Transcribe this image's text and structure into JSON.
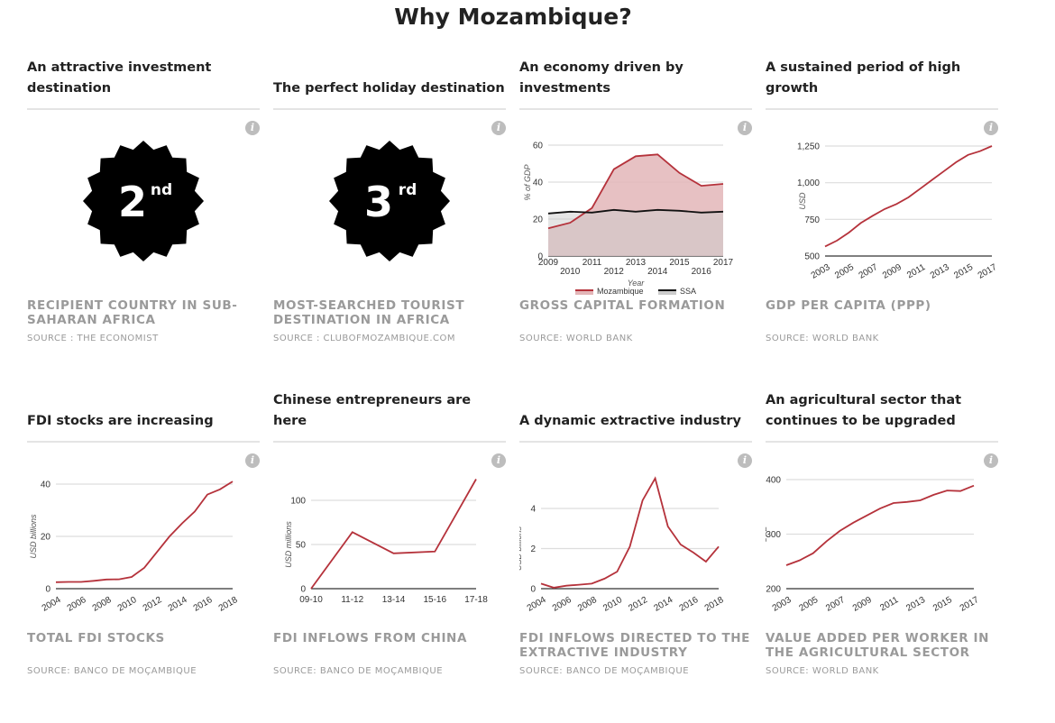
{
  "title": "Why Mozambique?",
  "info_label": "i",
  "cards": [
    {
      "title": "An attractive investment destination",
      "caption": "Recipient country in Sub-Saharan Africa",
      "source": "Source : The Economist",
      "badge": {
        "number": "2",
        "suffix": "nd"
      }
    },
    {
      "title": "The perfect holiday destination",
      "caption": "Most-searched tourist destination in Africa",
      "source": "Source : clubofmozambique.com",
      "badge": {
        "number": "3",
        "suffix": "rd"
      }
    },
    {
      "title": "An economy driven by investments",
      "caption": "Gross capital formation",
      "source": "Source: World Bank"
    },
    {
      "title": "A sustained period of high growth",
      "caption": "GDP per capita (PPP)",
      "source": "Source: World Bank"
    },
    {
      "title": "FDI stocks are increasing",
      "caption": "Total FDI stocks",
      "source": "Source: Banco de Moçambique"
    },
    {
      "title": "Chinese entrepreneurs are here",
      "caption": "FDI inflows from China",
      "source": "Source: Banco de Moçambique"
    },
    {
      "title": "A dynamic extractive industry",
      "caption": "FDI inflows directed to the extractive industry",
      "source": "Source: Banco de Moçambique"
    },
    {
      "title": "An agricultural sector that continues to be upgraded",
      "caption": "Value added per worker in the agricultural sector",
      "source": "Source: World Bank"
    }
  ],
  "chart_data": [
    {
      "card": 2,
      "type": "area",
      "x": [
        2009,
        2010,
        2011,
        2012,
        2013,
        2014,
        2015,
        2016,
        2017
      ],
      "xlabels": [
        "2009",
        "2010",
        "2011",
        "2012",
        "2013",
        "2014",
        "2015",
        "2016",
        "2017"
      ],
      "xlabel": "Year",
      "ylabel": "% of GDP",
      "ylim": [
        0,
        60
      ],
      "yticks": [
        0,
        20,
        40,
        60
      ],
      "ytick_labels": [
        "0",
        "20",
        "40",
        "60"
      ],
      "series": [
        {
          "name": "Mozambique",
          "color": "#b5323b",
          "fill": "#e3b6b8",
          "values": [
            15,
            18,
            26,
            47,
            54,
            55,
            45,
            38,
            39
          ]
        },
        {
          "name": "SSA",
          "color": "#111111",
          "fill": "#cccccc",
          "values": [
            23,
            24,
            23.5,
            25,
            24,
            25,
            24.5,
            23.5,
            24
          ]
        }
      ],
      "legend": "bottom"
    },
    {
      "card": 3,
      "type": "line",
      "x": [
        2003,
        2004,
        2005,
        2006,
        2007,
        2008,
        2009,
        2010,
        2011,
        2012,
        2013,
        2014,
        2015,
        2016,
        2017
      ],
      "xlabels": [
        "2003",
        "2005",
        "2007",
        "2009",
        "2011",
        "2013",
        "2015",
        "2017"
      ],
      "xlabel": "",
      "ylabel": "USD",
      "ylim": [
        500,
        1250
      ],
      "yticks": [
        500,
        750,
        1000,
        1250
      ],
      "ytick_labels": [
        "500",
        "750",
        "1,000",
        "1,250"
      ],
      "series": [
        {
          "name": "GDP per capita",
          "color": "#b5323b",
          "values": [
            565,
            605,
            660,
            725,
            775,
            820,
            855,
            900,
            960,
            1020,
            1080,
            1140,
            1190,
            1215,
            1250
          ]
        }
      ]
    },
    {
      "card": 4,
      "type": "line",
      "x": [
        2004,
        2005,
        2006,
        2007,
        2008,
        2009,
        2010,
        2011,
        2012,
        2013,
        2014,
        2015,
        2016,
        2017,
        2018
      ],
      "xlabels": [
        "2004",
        "2006",
        "2008",
        "2010",
        "2012",
        "2014",
        "2016",
        "2018"
      ],
      "xlabel": "",
      "ylabel": "USD billions",
      "ylim": [
        0,
        40
      ],
      "yticks": [
        0,
        20,
        40
      ],
      "ytick_labels": [
        "0",
        "20",
        "40"
      ],
      "series": [
        {
          "name": "FDI stocks",
          "color": "#b5323b",
          "values": [
            2.5,
            2.6,
            2.6,
            3,
            3.5,
            3.6,
            4.5,
            8,
            14,
            20,
            25,
            29.5,
            36,
            38,
            41
          ]
        }
      ]
    },
    {
      "card": 5,
      "type": "line",
      "x": [
        "09-10",
        "11-12",
        "13-14",
        "15-16",
        "17-18"
      ],
      "xlabels": [
        "09-10",
        "11-12",
        "13-14",
        "15-16",
        "17-18"
      ],
      "xlabel": "",
      "ylabel": "USD millions",
      "ylim": [
        0,
        100
      ],
      "yticks": [
        0,
        50,
        100
      ],
      "ytick_labels": [
        "0",
        "50",
        "100"
      ],
      "series": [
        {
          "name": "FDI from China",
          "color": "#b5323b",
          "values": [
            0,
            64,
            40,
            42,
            124
          ]
        }
      ]
    },
    {
      "card": 6,
      "type": "line",
      "x": [
        2004,
        2005,
        2006,
        2007,
        2008,
        2009,
        2010,
        2011,
        2012,
        2013,
        2014,
        2015,
        2016,
        2017,
        2018
      ],
      "xlabels": [
        "2004",
        "2006",
        "2008",
        "2010",
        "2012",
        "2014",
        "2016",
        "2018"
      ],
      "xlabel": "",
      "ylabel": "USD billions",
      "ylim": [
        0,
        4
      ],
      "yticks": [
        0,
        2,
        4
      ],
      "ytick_labels": [
        "0",
        "2",
        "4"
      ],
      "series": [
        {
          "name": "Extractive FDI",
          "color": "#b5323b",
          "values": [
            0.25,
            0.05,
            0.15,
            0.2,
            0.25,
            0.5,
            0.85,
            2.1,
            4.4,
            5.5,
            3.1,
            2.2,
            1.8,
            1.35,
            2.1
          ]
        }
      ]
    },
    {
      "card": 7,
      "type": "line",
      "x": [
        2003,
        2004,
        2005,
        2006,
        2007,
        2008,
        2009,
        2010,
        2011,
        2012,
        2013,
        2014,
        2015,
        2016,
        2017
      ],
      "xlabels": [
        "2003",
        "2005",
        "2007",
        "2009",
        "2011",
        "2013",
        "2015",
        "2017"
      ],
      "xlabel": "",
      "ylabel": "USD",
      "ylim": [
        200,
        400
      ],
      "yticks": [
        200,
        300,
        400
      ],
      "ytick_labels": [
        "200",
        "300",
        "400"
      ],
      "series": [
        {
          "name": "Value added per worker",
          "color": "#b5323b",
          "values": [
            243,
            252,
            265,
            287,
            306,
            321,
            334,
            347,
            357,
            359,
            362,
            372,
            380,
            379,
            389
          ]
        }
      ]
    }
  ]
}
